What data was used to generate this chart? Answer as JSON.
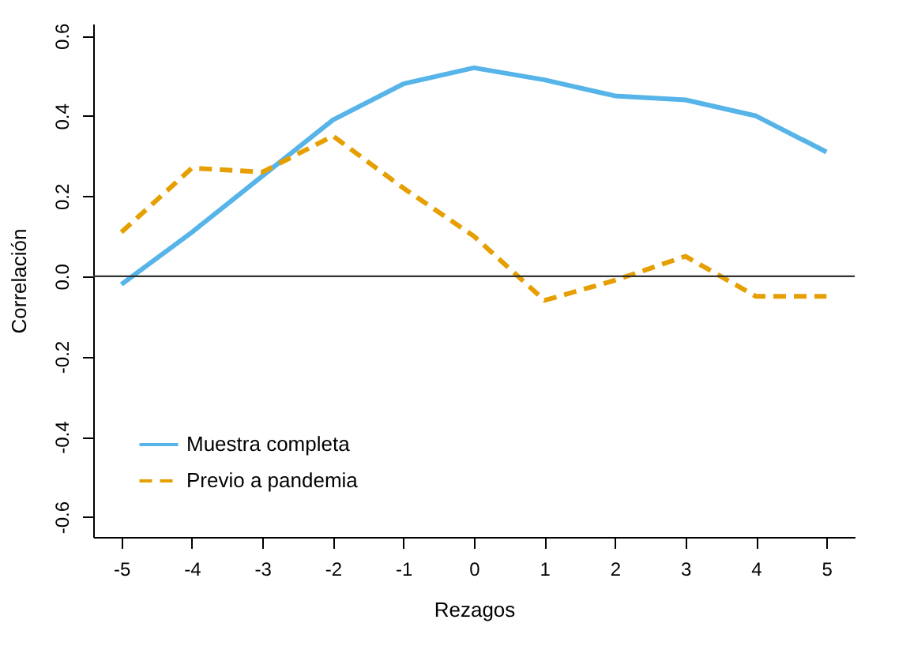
{
  "chart_data": {
    "type": "line",
    "xlabel": "Rezagos",
    "ylabel": "Correlación",
    "x": [
      -5,
      -4,
      -3,
      -2,
      -1,
      0,
      1,
      2,
      3,
      4,
      5
    ],
    "xlim": [
      -5.4,
      5.4
    ],
    "xticks": [
      -5,
      -4,
      -3,
      -2,
      -1,
      0,
      1,
      2,
      3,
      4,
      5
    ],
    "ylim": [
      -0.65,
      0.63
    ],
    "yticks": [
      -0.6,
      -0.4,
      -0.2,
      {
        "value": 0,
        "label": "0.0"
      },
      0.2,
      0.4,
      0.6
    ],
    "series": [
      {
        "name": "Muestra completa",
        "color": "#56b4e9",
        "line_style": "solid",
        "values": [
          -0.02,
          0.11,
          0.25,
          0.39,
          0.48,
          0.52,
          0.49,
          0.45,
          0.44,
          0.4,
          0.31
        ]
      },
      {
        "name": "Previo a pandemia",
        "color": "#e69f00",
        "line_style": "dashed",
        "values": [
          0.11,
          0.27,
          0.26,
          0.35,
          0.22,
          0.1,
          -0.06,
          -0.01,
          0.05,
          -0.05,
          -0.05
        ]
      }
    ],
    "ref_lines": [
      {
        "axis": "y",
        "value": 0,
        "color": "#333333"
      }
    ],
    "grid": false,
    "legend": "bottom left",
    "marker": "none"
  }
}
